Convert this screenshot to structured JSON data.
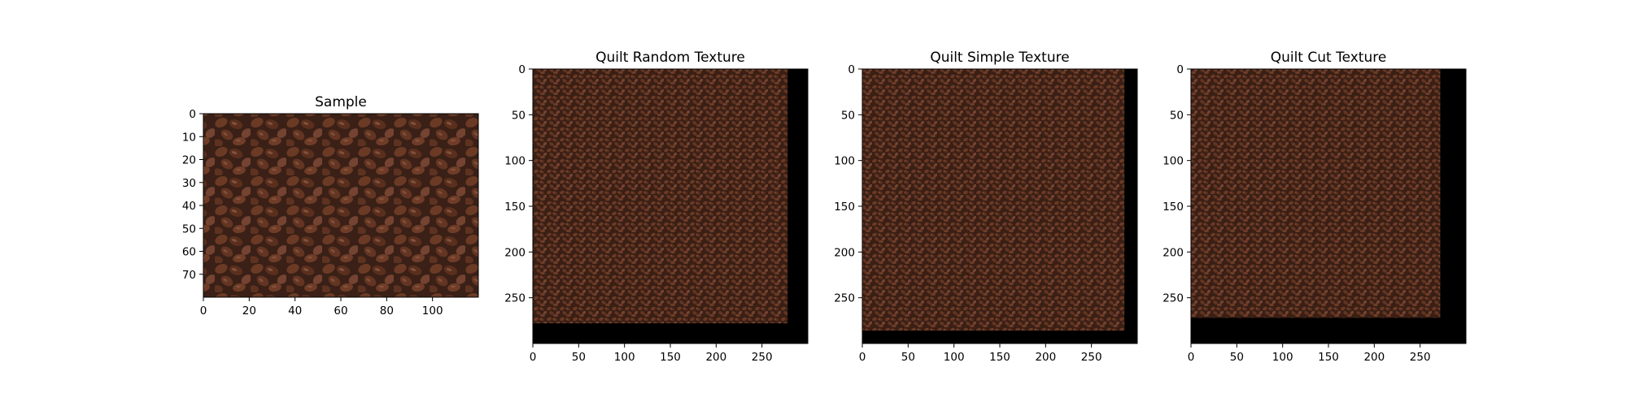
{
  "chart_data": [
    {
      "type": "image",
      "title": "Sample",
      "image_size": [
        120,
        80
      ],
      "xlim": [
        0,
        120
      ],
      "ylim": [
        80,
        0
      ],
      "xticks": [
        0,
        20,
        40,
        60,
        80,
        100
      ],
      "yticks": [
        0,
        10,
        20,
        30,
        40,
        50,
        60,
        70
      ],
      "texture_extent": [
        120,
        80
      ],
      "colors": {
        "base": "#3a2016",
        "bean": "#6b3a25",
        "highlight": "#9a6850"
      }
    },
    {
      "type": "image",
      "title": "Quilt Random Texture",
      "image_size": [
        300,
        300
      ],
      "xlim": [
        0,
        300
      ],
      "ylim": [
        300,
        0
      ],
      "xticks": [
        0,
        50,
        100,
        150,
        200,
        250
      ],
      "yticks": [
        0,
        50,
        100,
        150,
        200,
        250
      ],
      "texture_extent": [
        278,
        278
      ],
      "colors": {
        "base": "#3a2016",
        "bean": "#6b3a25",
        "highlight": "#9a6850",
        "empty": "#000000"
      }
    },
    {
      "type": "image",
      "title": "Quilt Simple Texture",
      "image_size": [
        300,
        300
      ],
      "xlim": [
        0,
        300
      ],
      "ylim": [
        300,
        0
      ],
      "xticks": [
        0,
        50,
        100,
        150,
        200,
        250
      ],
      "yticks": [
        0,
        50,
        100,
        150,
        200,
        250
      ],
      "texture_extent": [
        286,
        286
      ],
      "colors": {
        "base": "#3a2016",
        "bean": "#6b3a25",
        "highlight": "#9a6850",
        "empty": "#000000"
      }
    },
    {
      "type": "image",
      "title": "Quilt Cut Texture",
      "image_size": [
        300,
        300
      ],
      "xlim": [
        0,
        300
      ],
      "ylim": [
        300,
        0
      ],
      "xticks": [
        0,
        50,
        100,
        150,
        200,
        250
      ],
      "yticks": [
        0,
        50,
        100,
        150,
        200,
        250
      ],
      "texture_extent": [
        272,
        272
      ],
      "colors": {
        "base": "#3a2016",
        "bean": "#6b3a25",
        "highlight": "#9a6850",
        "empty": "#000000"
      }
    }
  ]
}
